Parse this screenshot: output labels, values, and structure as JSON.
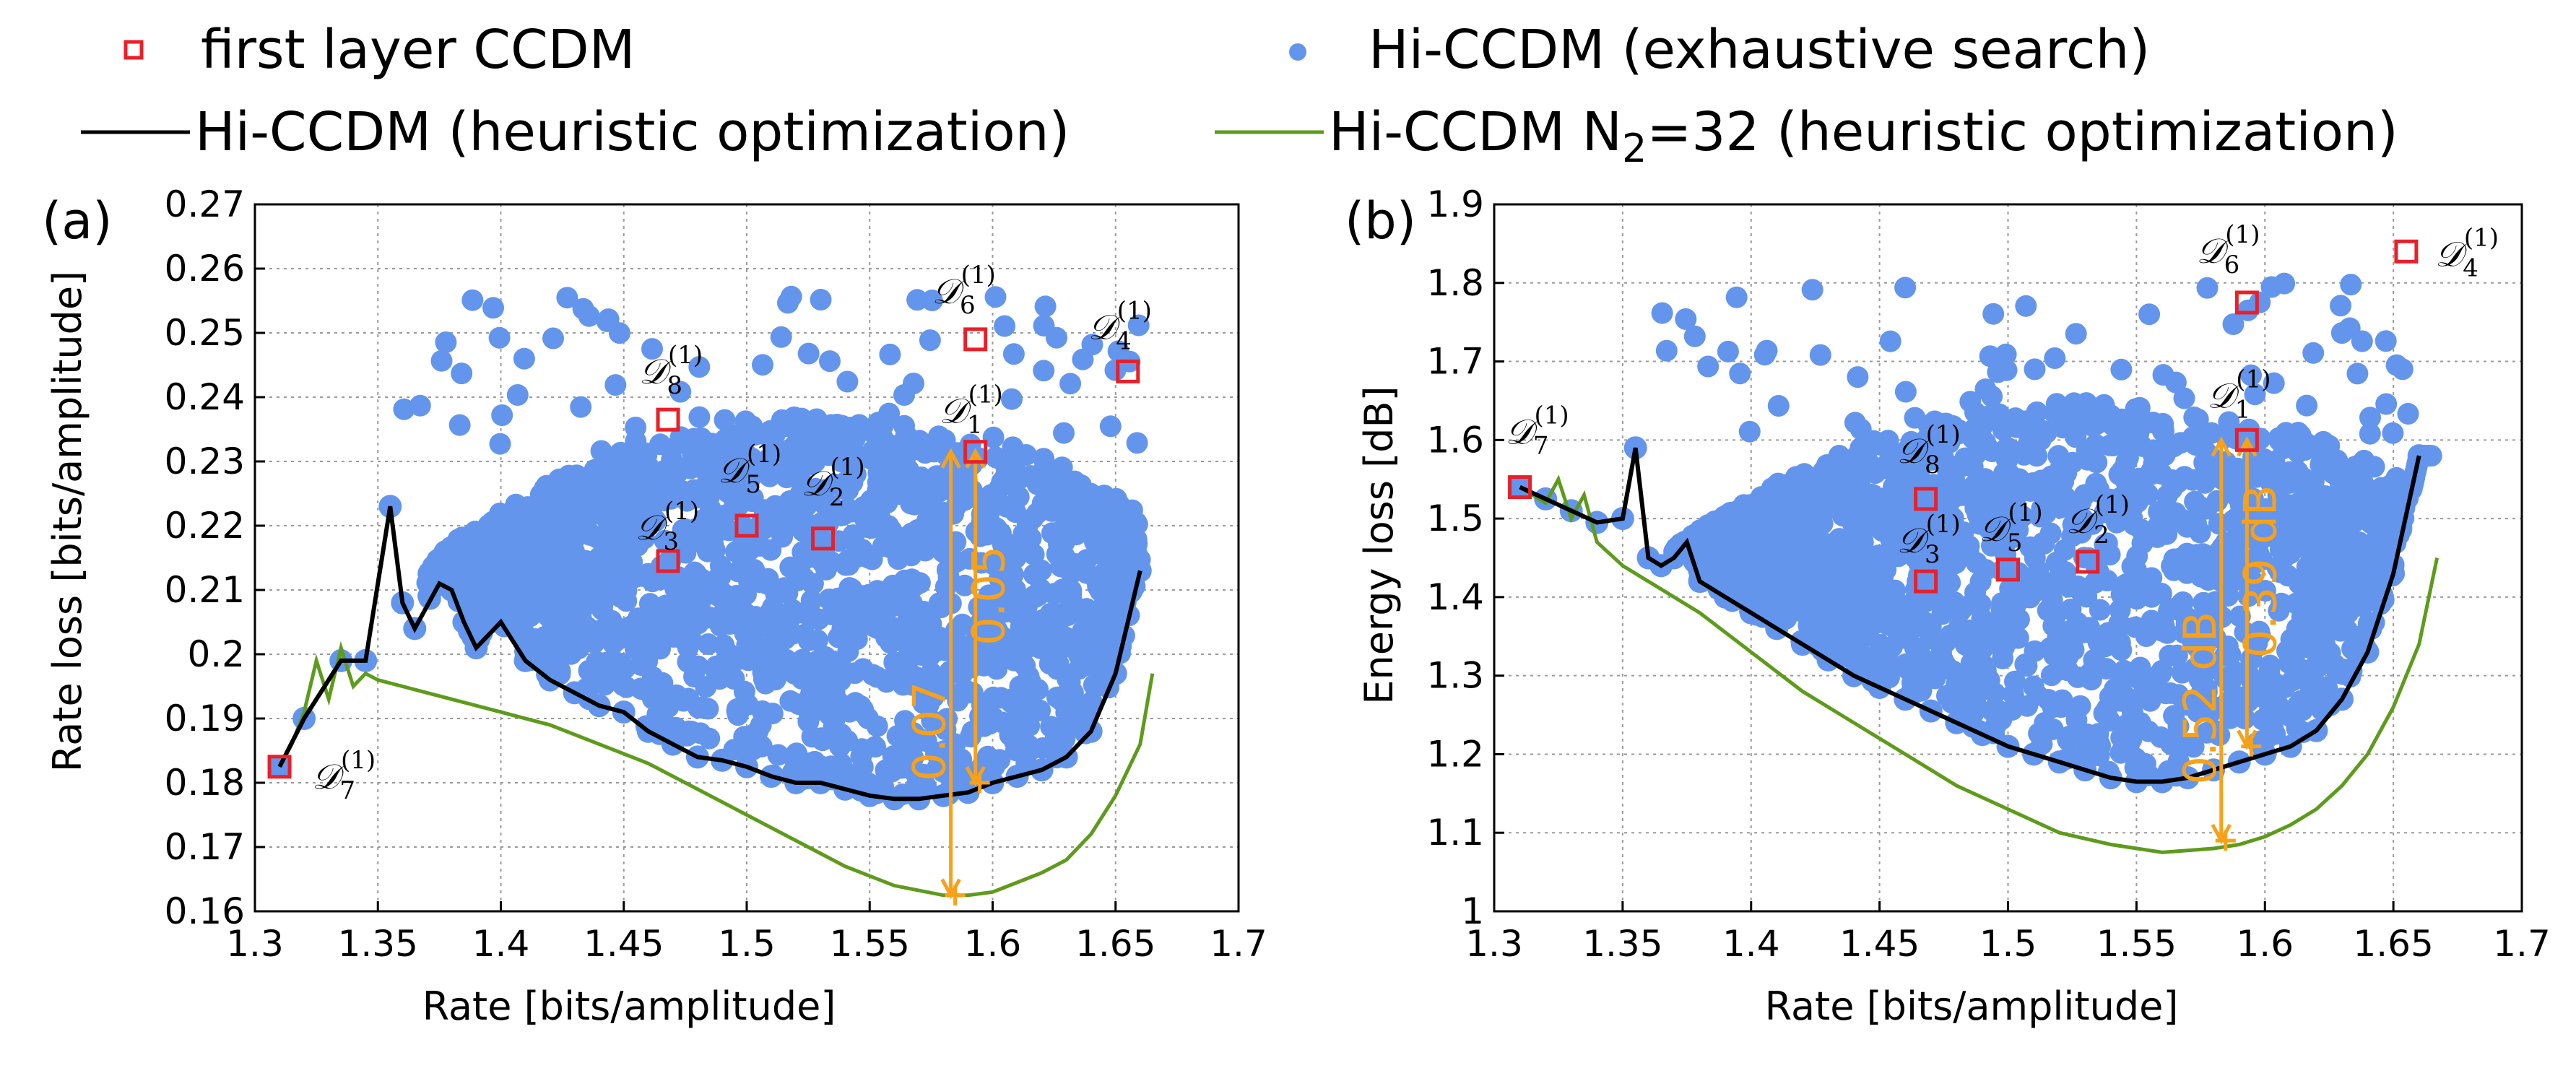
{
  "legend": {
    "items": [
      {
        "label": "first layer CCDM",
        "marker": "square",
        "color": "#E8202A"
      },
      {
        "label": "Hi-CCDM (exhaustive search)",
        "marker": "dot",
        "color": "#6495ED"
      },
      {
        "label": "Hi-CCDM (heuristic optimization)",
        "marker": "line",
        "color": "#000000"
      },
      {
        "label": "Hi-CCDM N",
        "label_sub": "2",
        "label_rest": "=32 (heuristic optimization)",
        "marker": "line",
        "color": "#5E9B1C"
      }
    ]
  },
  "colors": {
    "scatter": "#6495ED",
    "ccdm": "#E8202A",
    "heuristic": "#000000",
    "n32": "#5E9B1C",
    "annotation": "#F7A11A"
  },
  "chart_data": [
    {
      "panel": "(a)",
      "type": "scatter",
      "xlabel": "Rate [bits/amplitude]",
      "ylabel": "Rate loss [bits/amplitude]",
      "xlim": [
        1.3,
        1.7
      ],
      "ylim": [
        0.16,
        0.27
      ],
      "xticks": [
        "1.3",
        "1.35",
        "1.4",
        "1.45",
        "1.5",
        "1.55",
        "1.6",
        "1.65",
        "1.7"
      ],
      "yticks": [
        "0.16",
        "0.17",
        "0.18",
        "0.19",
        "0.2",
        "0.21",
        "0.22",
        "0.23",
        "0.24",
        "0.25",
        "0.26",
        "0.27"
      ],
      "grid": true,
      "ccdm_points": [
        {
          "name": "D",
          "sub": "7",
          "x": 1.31,
          "y": 0.1825
        },
        {
          "name": "D",
          "sub": "3",
          "x": 1.468,
          "y": 0.2145
        },
        {
          "name": "D",
          "sub": "8",
          "x": 1.468,
          "y": 0.2365
        },
        {
          "name": "D",
          "sub": "5",
          "x": 1.5,
          "y": 0.22
        },
        {
          "name": "D",
          "sub": "2",
          "x": 1.531,
          "y": 0.218
        },
        {
          "name": "D",
          "sub": "1",
          "x": 1.593,
          "y": 0.2315
        },
        {
          "name": "D",
          "sub": "6",
          "x": 1.593,
          "y": 0.249
        },
        {
          "name": "D",
          "sub": "4",
          "x": 1.655,
          "y": 0.244
        }
      ],
      "heuristic": {
        "x": [
          1.31,
          1.32,
          1.335,
          1.345,
          1.355,
          1.36,
          1.365,
          1.375,
          1.38,
          1.385,
          1.39,
          1.4,
          1.41,
          1.42,
          1.43,
          1.44,
          1.45,
          1.46,
          1.47,
          1.48,
          1.49,
          1.5,
          1.51,
          1.52,
          1.53,
          1.54,
          1.55,
          1.56,
          1.57,
          1.58,
          1.59,
          1.6,
          1.61,
          1.62,
          1.63,
          1.64,
          1.65,
          1.66
        ],
        "y": [
          0.1825,
          0.19,
          0.199,
          0.199,
          0.223,
          0.208,
          0.204,
          0.211,
          0.21,
          0.205,
          0.201,
          0.205,
          0.199,
          0.196,
          0.194,
          0.192,
          0.191,
          0.188,
          0.186,
          0.184,
          0.1835,
          0.1825,
          0.181,
          0.18,
          0.18,
          0.179,
          0.178,
          0.1775,
          0.1775,
          0.178,
          0.1785,
          0.18,
          0.181,
          0.182,
          0.184,
          0.188,
          0.197,
          0.213
        ]
      },
      "n32": {
        "x": [
          1.31,
          1.315,
          1.32,
          1.325,
          1.33,
          1.335,
          1.34,
          1.345,
          1.35,
          1.36,
          1.37,
          1.38,
          1.4,
          1.42,
          1.44,
          1.46,
          1.48,
          1.5,
          1.52,
          1.54,
          1.56,
          1.58,
          1.59,
          1.6,
          1.61,
          1.62,
          1.63,
          1.64,
          1.65,
          1.66,
          1.665
        ],
        "y": [
          0.1825,
          0.186,
          0.191,
          0.199,
          0.193,
          0.201,
          0.195,
          0.197,
          0.196,
          0.195,
          0.194,
          0.193,
          0.191,
          0.189,
          0.186,
          0.183,
          0.179,
          0.175,
          0.171,
          0.167,
          0.164,
          0.1625,
          0.1625,
          0.163,
          0.1645,
          0.166,
          0.168,
          0.172,
          0.178,
          0.186,
          0.197
        ]
      },
      "cloud": {
        "x_min": 1.37,
        "x_max": 1.66,
        "x_center": 1.525,
        "lower": 0.1775
      },
      "annotations": [
        {
          "text": "0.07",
          "x": 1.583,
          "y_from": 0.1625,
          "y_to": 0.2315
        },
        {
          "text": "0.05",
          "x": 1.593,
          "y_from": 0.18,
          "y_to": 0.2315
        }
      ]
    },
    {
      "panel": "(b)",
      "type": "scatter",
      "xlabel": "Rate [bits/amplitude]",
      "ylabel": "Energy loss [dB]",
      "xlim": [
        1.3,
        1.7
      ],
      "ylim": [
        1.0,
        1.9
      ],
      "xticks": [
        "1.3",
        "1.35",
        "1.4",
        "1.45",
        "1.5",
        "1.55",
        "1.6",
        "1.65",
        "1.7"
      ],
      "yticks": [
        "1",
        "1.1",
        "1.2",
        "1.3",
        "1.4",
        "1.5",
        "1.6",
        "1.7",
        "1.8",
        "1.9"
      ],
      "grid": true,
      "ccdm_points": [
        {
          "name": "D",
          "sub": "7",
          "x": 1.31,
          "y": 1.54
        },
        {
          "name": "D",
          "sub": "3",
          "x": 1.468,
          "y": 1.42
        },
        {
          "name": "D",
          "sub": "8",
          "x": 1.468,
          "y": 1.525
        },
        {
          "name": "D",
          "sub": "5",
          "x": 1.5,
          "y": 1.435
        },
        {
          "name": "D",
          "sub": "2",
          "x": 1.531,
          "y": 1.445
        },
        {
          "name": "D",
          "sub": "1",
          "x": 1.593,
          "y": 1.6
        },
        {
          "name": "D",
          "sub": "6",
          "x": 1.593,
          "y": 1.775
        },
        {
          "name": "D",
          "sub": "4",
          "x": 1.655,
          "y": 1.84
        }
      ],
      "heuristic": {
        "x": [
          1.31,
          1.32,
          1.33,
          1.34,
          1.35,
          1.355,
          1.36,
          1.365,
          1.37,
          1.375,
          1.38,
          1.39,
          1.4,
          1.41,
          1.42,
          1.43,
          1.44,
          1.45,
          1.46,
          1.47,
          1.48,
          1.49,
          1.5,
          1.51,
          1.52,
          1.53,
          1.54,
          1.55,
          1.56,
          1.57,
          1.58,
          1.59,
          1.6,
          1.61,
          1.62,
          1.63,
          1.64,
          1.65,
          1.66
        ],
        "y": [
          1.54,
          1.525,
          1.51,
          1.495,
          1.5,
          1.59,
          1.45,
          1.44,
          1.45,
          1.47,
          1.42,
          1.4,
          1.38,
          1.36,
          1.34,
          1.32,
          1.3,
          1.285,
          1.27,
          1.255,
          1.24,
          1.225,
          1.21,
          1.2,
          1.19,
          1.18,
          1.17,
          1.165,
          1.165,
          1.17,
          1.18,
          1.19,
          1.2,
          1.21,
          1.23,
          1.27,
          1.33,
          1.43,
          1.58
        ]
      },
      "n32": {
        "x": [
          1.31,
          1.32,
          1.325,
          1.33,
          1.335,
          1.34,
          1.35,
          1.36,
          1.38,
          1.4,
          1.42,
          1.44,
          1.46,
          1.48,
          1.5,
          1.52,
          1.54,
          1.56,
          1.58,
          1.59,
          1.6,
          1.61,
          1.62,
          1.63,
          1.64,
          1.65,
          1.66,
          1.667
        ],
        "y": [
          1.54,
          1.52,
          1.55,
          1.5,
          1.53,
          1.47,
          1.44,
          1.42,
          1.38,
          1.33,
          1.28,
          1.24,
          1.2,
          1.16,
          1.13,
          1.1,
          1.085,
          1.075,
          1.08,
          1.085,
          1.095,
          1.11,
          1.13,
          1.16,
          1.2,
          1.26,
          1.34,
          1.45
        ]
      },
      "cloud": {
        "x_min": 1.37,
        "x_max": 1.665,
        "x_center": 1.528,
        "lower": 1.165
      },
      "annotations": [
        {
          "text": "0.52 dB",
          "x": 1.583,
          "y_from": 1.09,
          "y_to": 1.6
        },
        {
          "text": "0.39 dB",
          "x": 1.593,
          "y_from": 1.21,
          "y_to": 1.6
        }
      ]
    }
  ]
}
